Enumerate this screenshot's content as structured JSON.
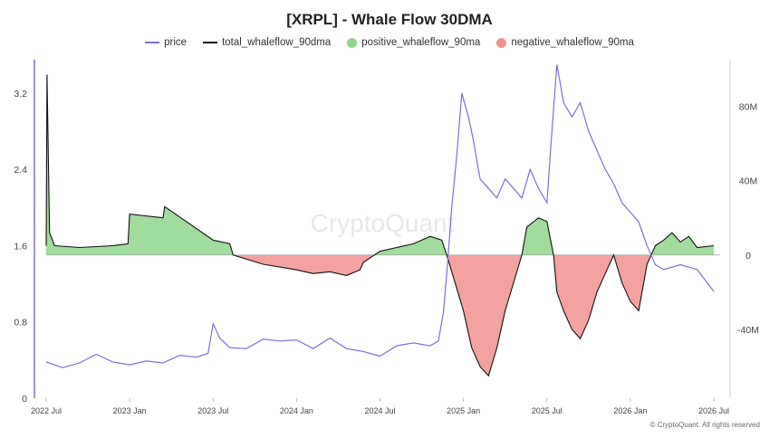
{
  "chart_data": {
    "type": "line",
    "title": "[XRPL] - Whale Flow 30DMA",
    "watermark": "CryptoQuant",
    "copyright": "© CryptoQuant. All rights reserved",
    "legend_placement": "top-center",
    "grid": false,
    "x_axis": {
      "ticks": [
        "2022 Jul",
        "2023 Jan",
        "2023 Jul",
        "2024 Jan",
        "2024 Jul",
        "2025 Jan",
        "2025 Jul",
        "2026 Jan",
        "2026 Jul"
      ],
      "range": [
        "2022 Jul",
        "2026 Jul"
      ]
    },
    "y_left": {
      "ticks": [
        "0",
        "0.8",
        "1.6",
        "2.4",
        "3.2"
      ],
      "range": [
        0,
        3.55
      ]
    },
    "y_right": {
      "ticks": [
        "-40M",
        "0",
        "40M",
        "80M"
      ],
      "range": [
        -77000000,
        105000000
      ]
    },
    "colors": {
      "price": "#7b6fd6",
      "total": "#111111",
      "positive": "#8fd68a",
      "negative": "#f2928f"
    },
    "series": [
      {
        "name": "price",
        "axis": "left",
        "x": [
          2022.5,
          2022.6,
          2022.7,
          2022.8,
          2022.9,
          2023.0,
          2023.1,
          2023.2,
          2023.3,
          2023.4,
          2023.47,
          2023.5,
          2023.54,
          2023.6,
          2023.7,
          2023.8,
          2023.9,
          2024.0,
          2024.1,
          2024.2,
          2024.3,
          2024.4,
          2024.5,
          2024.6,
          2024.7,
          2024.8,
          2024.85,
          2024.88,
          2024.9,
          2024.93,
          2024.96,
          2024.99,
          2025.03,
          2025.06,
          2025.1,
          2025.15,
          2025.2,
          2025.25,
          2025.3,
          2025.35,
          2025.4,
          2025.45,
          2025.5,
          2025.53,
          2025.56,
          2025.6,
          2025.65,
          2025.7,
          2025.75,
          2025.8,
          2025.85,
          2025.9,
          2025.95,
          2026.0,
          2026.05,
          2026.1,
          2026.15,
          2026.2,
          2026.3,
          2026.4,
          2026.5
        ],
        "values": [
          0.38,
          0.32,
          0.37,
          0.46,
          0.38,
          0.35,
          0.39,
          0.37,
          0.45,
          0.43,
          0.47,
          0.78,
          0.63,
          0.53,
          0.52,
          0.62,
          0.6,
          0.61,
          0.52,
          0.63,
          0.52,
          0.49,
          0.44,
          0.55,
          0.58,
          0.55,
          0.6,
          0.9,
          1.3,
          2.0,
          2.55,
          3.2,
          2.95,
          2.7,
          2.3,
          2.2,
          2.1,
          2.3,
          2.2,
          2.1,
          2.4,
          2.2,
          2.05,
          2.8,
          3.5,
          3.1,
          2.95,
          3.1,
          2.8,
          2.6,
          2.4,
          2.25,
          2.05,
          1.95,
          1.85,
          1.6,
          1.4,
          1.35,
          1.4,
          1.35,
          1.12
        ]
      },
      {
        "name": "total_whaleflow_90dma",
        "axis": "right",
        "x": [
          2022.5,
          2022.505,
          2022.52,
          2022.55,
          2022.7,
          2022.9,
          2022.99,
          2023.0,
          2023.2,
          2023.21,
          2023.5,
          2023.6,
          2023.62,
          2023.8,
          2024.0,
          2024.1,
          2024.2,
          2024.3,
          2024.38,
          2024.4,
          2024.5,
          2024.6,
          2024.7,
          2024.8,
          2024.87,
          2024.9,
          2025.0,
          2025.05,
          2025.1,
          2025.15,
          2025.2,
          2025.25,
          2025.3,
          2025.35,
          2025.38,
          2025.45,
          2025.5,
          2025.54,
          2025.56,
          2025.6,
          2025.65,
          2025.7,
          2025.75,
          2025.8,
          2025.85,
          2025.9,
          2025.95,
          2026.0,
          2026.05,
          2026.08,
          2026.1,
          2026.15,
          2026.2,
          2026.25,
          2026.3,
          2026.35,
          2026.4,
          2026.5
        ],
        "values": [
          5000000,
          97000000,
          12000000,
          5000000,
          4000000,
          5000000,
          6000000,
          22000000,
          20000000,
          26000000,
          8000000,
          6000000,
          0,
          -5000000,
          -8000000,
          -10000000,
          -9000000,
          -11000000,
          -8000000,
          -4000000,
          2000000,
          4000000,
          6000000,
          10000000,
          8000000,
          0,
          -30000000,
          -50000000,
          -60000000,
          -65000000,
          -50000000,
          -30000000,
          -15000000,
          0,
          15000000,
          20000000,
          18000000,
          0,
          -20000000,
          -30000000,
          -40000000,
          -45000000,
          -35000000,
          -20000000,
          -10000000,
          0,
          -15000000,
          -25000000,
          -30000000,
          -15000000,
          -5000000,
          5000000,
          8000000,
          12000000,
          7000000,
          10000000,
          4000000,
          5000000
        ]
      }
    ],
    "legend": [
      "price",
      "total_whaleflow_90dma",
      "positive_whaleflow_90ma",
      "negative_whaleflow_90ma"
    ]
  }
}
